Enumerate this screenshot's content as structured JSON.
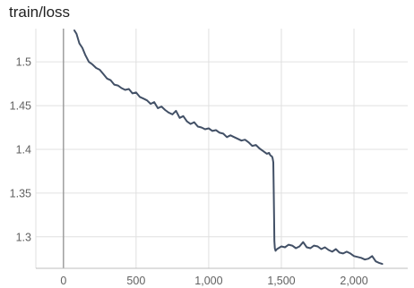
{
  "title": "train/loss",
  "chart_data": {
    "type": "line",
    "title": "train/loss",
    "xlabel": "",
    "ylabel": "",
    "xlim": [
      -190,
      2370
    ],
    "ylim": [
      1.264,
      1.538
    ],
    "x_ticks": [
      0,
      500,
      1000,
      1500,
      2000
    ],
    "x_tick_labels": [
      "0",
      "500",
      "1,000",
      "1,500",
      "2,000"
    ],
    "y_ticks": [
      1.3,
      1.35,
      1.4,
      1.45,
      1.5
    ],
    "y_tick_labels": [
      "1.3",
      "1.35",
      "1.4",
      "1.45",
      "1.5"
    ],
    "grid": true,
    "legend": "none",
    "series": [
      {
        "color": "#425066",
        "x": [
          75,
          90,
          110,
          130,
          150,
          175,
          200,
          225,
          250,
          275,
          300,
          325,
          350,
          375,
          400,
          425,
          450,
          475,
          500,
          525,
          550,
          575,
          600,
          625,
          650,
          675,
          700,
          725,
          750,
          775,
          800,
          825,
          850,
          875,
          900,
          925,
          950,
          975,
          1000,
          1025,
          1050,
          1075,
          1100,
          1125,
          1150,
          1175,
          1200,
          1225,
          1250,
          1275,
          1300,
          1325,
          1350,
          1375,
          1400,
          1415,
          1425,
          1435,
          1440,
          1445,
          1448,
          1450,
          1452,
          1455,
          1460,
          1470,
          1500,
          1525,
          1550,
          1575,
          1600,
          1625,
          1650,
          1675,
          1700,
          1725,
          1750,
          1775,
          1800,
          1825,
          1850,
          1875,
          1900,
          1925,
          1950,
          1975,
          2000,
          2025,
          2050,
          2075,
          2100,
          2125,
          2150,
          2175,
          2195
        ],
        "y": [
          1.536,
          1.532,
          1.521,
          1.516,
          1.508,
          1.5,
          1.497,
          1.493,
          1.491,
          1.486,
          1.481,
          1.479,
          1.474,
          1.473,
          1.47,
          1.468,
          1.469,
          1.464,
          1.465,
          1.46,
          1.458,
          1.456,
          1.452,
          1.454,
          1.447,
          1.449,
          1.445,
          1.442,
          1.44,
          1.444,
          1.436,
          1.438,
          1.432,
          1.429,
          1.431,
          1.426,
          1.425,
          1.423,
          1.424,
          1.421,
          1.422,
          1.419,
          1.418,
          1.414,
          1.416,
          1.414,
          1.412,
          1.41,
          1.411,
          1.408,
          1.404,
          1.405,
          1.401,
          1.398,
          1.395,
          1.396,
          1.393,
          1.392,
          1.39,
          1.385,
          1.35,
          1.32,
          1.295,
          1.287,
          1.284,
          1.286,
          1.289,
          1.288,
          1.291,
          1.29,
          1.287,
          1.289,
          1.294,
          1.288,
          1.287,
          1.29,
          1.289,
          1.286,
          1.288,
          1.285,
          1.283,
          1.286,
          1.282,
          1.281,
          1.283,
          1.281,
          1.278,
          1.277,
          1.276,
          1.274,
          1.275,
          1.278,
          1.272,
          1.27,
          1.269
        ]
      }
    ]
  }
}
